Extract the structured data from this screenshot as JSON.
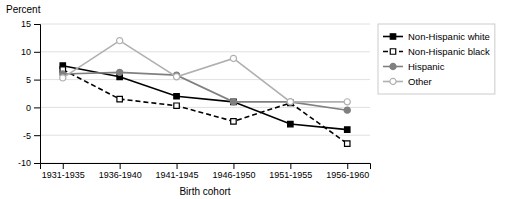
{
  "chart_data": {
    "type": "line",
    "x_label": "Birth cohort",
    "y_label": "Percent",
    "categories": [
      "1931-1935",
      "1936-1940",
      "1941-1945",
      "1946-1950",
      "1951-1955",
      "1956-1960"
    ],
    "series": [
      {
        "name": "Non-Hispanic white",
        "color": "#000000",
        "line_style": "solid",
        "marker": "square",
        "values": [
          7.5,
          5.5,
          2.0,
          1.0,
          -3.0,
          -4.0
        ]
      },
      {
        "name": "Non-Hispanic black",
        "color": "#000000",
        "line_style": "dashed",
        "marker": "open-square",
        "values": [
          6.8,
          1.5,
          0.3,
          -2.5,
          0.8,
          -6.5
        ]
      },
      {
        "name": "Hispanic",
        "color": "#808080",
        "line_style": "solid",
        "marker": "circle",
        "values": [
          6.0,
          6.3,
          5.8,
          1.0,
          1.0,
          -0.5
        ]
      },
      {
        "name": "Other",
        "color": "#b0b0b0",
        "line_style": "solid",
        "marker": "open-circle",
        "values": [
          5.3,
          12.0,
          5.5,
          8.8,
          1.0,
          1.0
        ]
      }
    ],
    "ylim": [
      -10,
      15
    ],
    "yticks": [
      -10,
      -5,
      0,
      5,
      10,
      15
    ],
    "grid": true,
    "legend": "right"
  }
}
